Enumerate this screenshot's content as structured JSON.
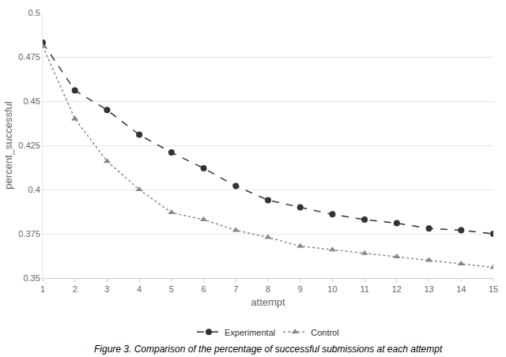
{
  "chart_data": {
    "type": "line",
    "x_label": "attempt",
    "y_label": "percent_successful",
    "caption": "Figure 3. Comparison of the percentage of successful submissions at each attempt",
    "x": [
      1,
      2,
      3,
      4,
      5,
      6,
      7,
      8,
      9,
      10,
      11,
      12,
      13,
      14,
      15
    ],
    "series": [
      {
        "name": "Experimental",
        "color": "#333333",
        "marker": "circle",
        "line_style": "dash",
        "values": [
          0.483,
          0.456,
          0.445,
          0.431,
          0.421,
          0.412,
          0.402,
          0.394,
          0.39,
          0.386,
          0.383,
          0.381,
          0.378,
          0.377,
          0.375
        ]
      },
      {
        "name": "Control",
        "color": "#888888",
        "marker": "triangle-up",
        "line_style": "dot",
        "values": [
          0.481,
          0.44,
          0.416,
          0.4,
          0.387,
          0.383,
          0.377,
          0.373,
          0.368,
          0.366,
          0.364,
          0.362,
          0.36,
          0.358,
          0.356
        ]
      }
    ],
    "xlim": [
      1,
      15
    ],
    "xticks": [
      1,
      2,
      3,
      4,
      5,
      6,
      7,
      8,
      9,
      10,
      11,
      12,
      13,
      14,
      15
    ],
    "ylim": [
      0.35,
      0.5
    ],
    "yticks": [
      0.35,
      0.375,
      0.4,
      0.425,
      0.45,
      0.475,
      0.5
    ],
    "grid": true,
    "legend": "bottom"
  }
}
